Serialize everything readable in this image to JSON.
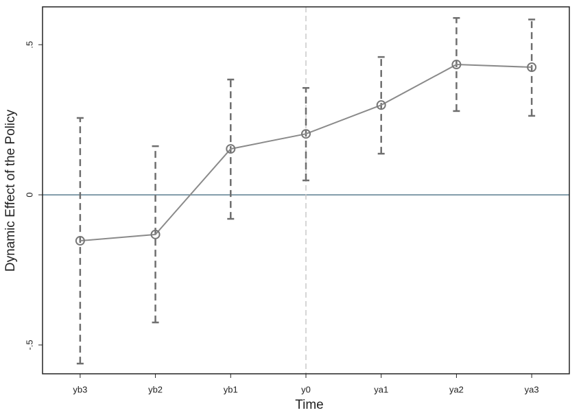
{
  "chart_data": {
    "type": "line",
    "x_label": "Time",
    "y_label": "Dynamic Effect of the Policy",
    "categories": [
      "yb3",
      "yb2",
      "yb1",
      "y0",
      "ya1",
      "ya2",
      "ya3"
    ],
    "values": [
      -0.153,
      -0.132,
      0.153,
      0.203,
      0.299,
      0.434,
      0.425
    ],
    "ci_low": [
      -0.562,
      -0.425,
      -0.08,
      0.048,
      0.137,
      0.279,
      0.263
    ],
    "ci_high": [
      0.256,
      0.162,
      0.384,
      0.356,
      0.459,
      0.589,
      0.584
    ],
    "color": "#8a8a8a",
    "ci_color": "#6e6e6e",
    "ylim": [
      -0.596,
      0.626
    ],
    "yticks": [
      {
        "value": -0.5,
        "label": "-.5"
      },
      0,
      {
        "value": 0.5,
        "label": ".5"
      }
    ],
    "reference_y": 0,
    "reference_y_color": "#7f9aa8",
    "reference_x": "y0",
    "reference_x_color": "#c8c8c8"
  }
}
